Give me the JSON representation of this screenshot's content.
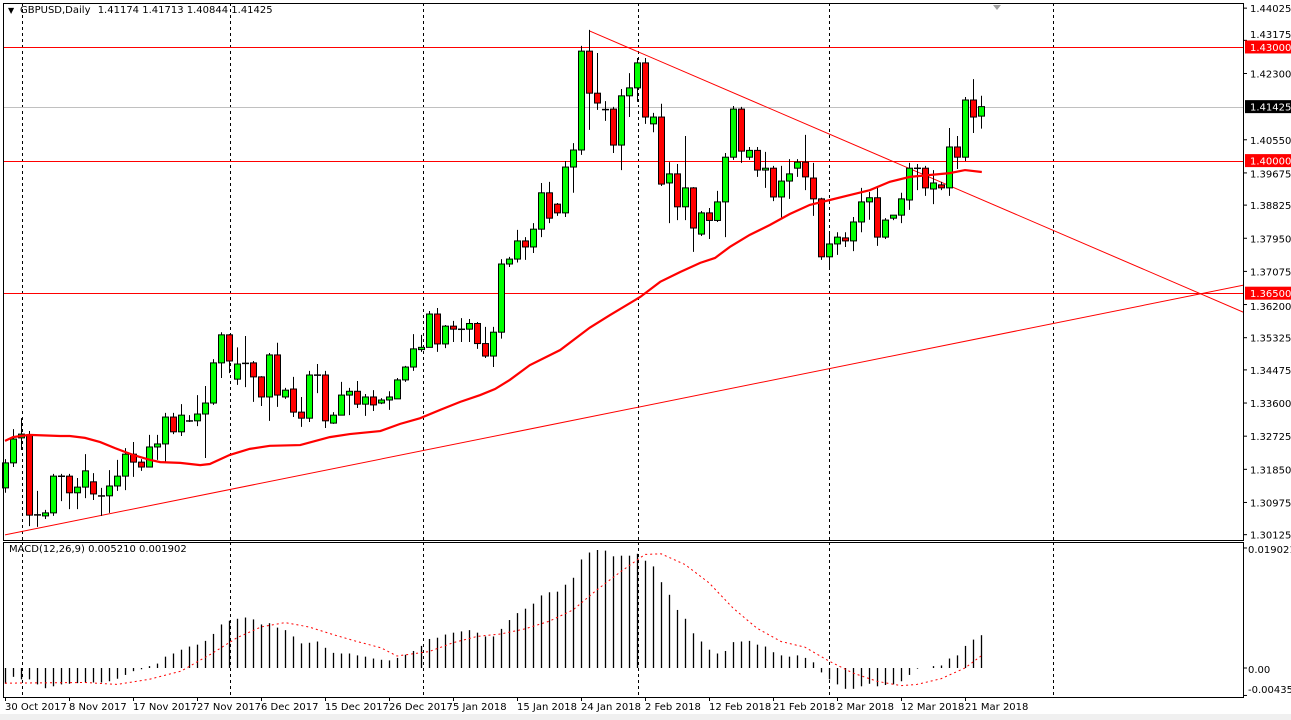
{
  "header": {
    "symbol": "GBPUSD,Daily",
    "ohlc": "1.41174 1.41713 1.40844 1.41425"
  },
  "macd_header": {
    "label": "MACD(12,26,9) 0.005210 0.001902"
  },
  "colors": {
    "bull": "#00ff00",
    "bear": "#ff0000",
    "outline": "#000000",
    "ma": "#ff0000",
    "trend": "#ff0000",
    "level": "#ff0000",
    "current": "#c0c0c0",
    "signal": "#ff0000"
  },
  "chart_data": {
    "type": "candlestick",
    "title": "GBPUSD,Daily",
    "ylim": [
      1.30125,
      1.44025
    ],
    "price_ticks": [
      "1.44025",
      "1.43175",
      "1.42300",
      "1.40550",
      "1.39675",
      "1.38825",
      "1.37950",
      "1.37075",
      "1.36200",
      "1.35325",
      "1.34475",
      "1.33600",
      "1.32725",
      "1.31850",
      "1.30975",
      "1.30125"
    ],
    "levels": [
      {
        "value": "1.43000",
        "kind": "level"
      },
      {
        "value": "1.40000",
        "kind": "level"
      },
      {
        "value": "1.36500",
        "kind": "level"
      },
      {
        "value": "1.41425",
        "kind": "current"
      }
    ],
    "trendlines": [
      {
        "name": "ascending-trendline",
        "from": [
          0,
          1.3012
        ],
        "to": [
          155,
          1.3672
        ]
      },
      {
        "name": "descending-trendline",
        "from": [
          73.1,
          1.4342
        ],
        "to": [
          155,
          1.3598
        ]
      }
    ],
    "time_labels": [
      {
        "i": 0,
        "label": "30 Oct 2017"
      },
      {
        "i": 8,
        "label": "8 Nov 2017"
      },
      {
        "i": 16,
        "label": "17 Nov 2017"
      },
      {
        "i": 24,
        "label": "27 Nov 2017"
      },
      {
        "i": 32,
        "label": "6 Dec 2017"
      },
      {
        "i": 40,
        "label": "15 Dec 2017"
      },
      {
        "i": 48,
        "label": "26 Dec 2017"
      },
      {
        "i": 56,
        "label": "5 Jan 2018"
      },
      {
        "i": 64,
        "label": "15 Jan 2018"
      },
      {
        "i": 72,
        "label": "24 Jan 2018"
      },
      {
        "i": 80,
        "label": "2 Feb 2018"
      },
      {
        "i": 88,
        "label": "12 Feb 2018"
      },
      {
        "i": 96,
        "label": "21 Feb 2018"
      },
      {
        "i": 104,
        "label": "2 Mar 2018"
      },
      {
        "i": 112,
        "label": "12 Mar 2018"
      },
      {
        "i": 120,
        "label": "21 Mar 2018"
      }
    ],
    "candles": [
      [
        1.3136,
        1.3212,
        1.3123,
        1.3202
      ],
      [
        1.3202,
        1.3291,
        1.3191,
        1.3265
      ],
      [
        1.3268,
        1.332,
        1.3236,
        1.3278
      ],
      [
        1.3276,
        1.3286,
        1.3035,
        1.3064
      ],
      [
        1.3064,
        1.3128,
        1.3033,
        1.3066
      ],
      [
        1.3062,
        1.3078,
        1.3054,
        1.307
      ],
      [
        1.307,
        1.3173,
        1.3062,
        1.3167
      ],
      [
        1.3167,
        1.3173,
        1.3101,
        1.3168
      ],
      [
        1.3167,
        1.3173,
        1.308,
        1.3123
      ],
      [
        1.3123,
        1.3162,
        1.308,
        1.3138
      ],
      [
        1.3138,
        1.3225,
        1.3109,
        1.3181
      ],
      [
        1.3152,
        1.3175,
        1.3104,
        1.312
      ],
      [
        1.3115,
        1.3136,
        1.3062,
        1.3116
      ],
      [
        1.3115,
        1.3183,
        1.307,
        1.3141
      ],
      [
        1.3141,
        1.321,
        1.3128,
        1.3167
      ],
      [
        1.3167,
        1.3241,
        1.313,
        1.3225
      ],
      [
        1.3225,
        1.3257,
        1.3165,
        1.3204
      ],
      [
        1.3204,
        1.3212,
        1.3181,
        1.3191
      ],
      [
        1.3191,
        1.3276,
        1.319,
        1.3244
      ],
      [
        1.3244,
        1.3276,
        1.321,
        1.3252
      ],
      [
        1.3252,
        1.3334,
        1.3204,
        1.3323
      ],
      [
        1.3323,
        1.3334,
        1.3278,
        1.3284
      ],
      [
        1.3284,
        1.3357,
        1.3273,
        1.3328
      ],
      [
        1.3313,
        1.3328,
        1.331,
        1.3314
      ],
      [
        1.3313,
        1.3381,
        1.3299,
        1.3331
      ],
      [
        1.3331,
        1.3405,
        1.3215,
        1.336
      ],
      [
        1.336,
        1.3476,
        1.3355,
        1.3466
      ],
      [
        1.3466,
        1.3547,
        1.3426,
        1.354
      ],
      [
        1.354,
        1.3542,
        1.3439,
        1.3471
      ],
      [
        1.3423,
        1.3507,
        1.3408,
        1.3463
      ],
      [
        1.3466,
        1.3537,
        1.3402,
        1.3465
      ],
      [
        1.3466,
        1.3471,
        1.3363,
        1.3429
      ],
      [
        1.3429,
        1.3431,
        1.3352,
        1.3376
      ],
      [
        1.3376,
        1.3492,
        1.3313,
        1.3487
      ],
      [
        1.3487,
        1.3519,
        1.335,
        1.3381
      ],
      [
        1.3376,
        1.34,
        1.3371,
        1.3394
      ],
      [
        1.3397,
        1.3429,
        1.3323,
        1.3336
      ],
      [
        1.3336,
        1.3376,
        1.3297,
        1.332
      ],
      [
        1.332,
        1.3445,
        1.331,
        1.3434
      ],
      [
        1.3434,
        1.3463,
        1.3386,
        1.3435
      ],
      [
        1.3434,
        1.3445,
        1.3294,
        1.3313
      ],
      [
        1.3307,
        1.3336,
        1.3305,
        1.3328
      ],
      [
        1.3328,
        1.3416,
        1.3328,
        1.3381
      ],
      [
        1.3381,
        1.34,
        1.3328,
        1.3391
      ],
      [
        1.3391,
        1.3418,
        1.3347,
        1.3357
      ],
      [
        1.3357,
        1.3384,
        1.3326,
        1.3376
      ],
      [
        1.3376,
        1.3394,
        1.3339,
        1.3355
      ],
      [
        1.336,
        1.3373,
        1.3357,
        1.3368
      ],
      [
        1.3368,
        1.3391,
        1.3342,
        1.3376
      ],
      [
        1.3371,
        1.3426,
        1.3371,
        1.3421
      ],
      [
        1.3421,
        1.3458,
        1.3416,
        1.3455
      ],
      [
        1.3455,
        1.3542,
        1.3445,
        1.3503
      ],
      [
        1.3501,
        1.354,
        1.3495,
        1.3507
      ],
      [
        1.3507,
        1.3603,
        1.3507,
        1.3595
      ],
      [
        1.3595,
        1.3611,
        1.3495,
        1.3516
      ],
      [
        1.3516,
        1.3566,
        1.3505,
        1.3563
      ],
      [
        1.3563,
        1.3577,
        1.3521,
        1.3555
      ],
      [
        1.3555,
        1.3584,
        1.3521,
        1.3556
      ],
      [
        1.3555,
        1.3582,
        1.3521,
        1.357
      ],
      [
        1.357,
        1.3574,
        1.3503,
        1.3517
      ],
      [
        1.3517,
        1.3561,
        1.3479,
        1.3484
      ],
      [
        1.3484,
        1.3561,
        1.3455,
        1.3547
      ],
      [
        1.3547,
        1.374,
        1.353,
        1.3727
      ],
      [
        1.3727,
        1.3746,
        1.3719,
        1.374
      ],
      [
        1.374,
        1.3817,
        1.3731,
        1.3788
      ],
      [
        1.3788,
        1.3798,
        1.3738,
        1.3772
      ],
      [
        1.3772,
        1.3835,
        1.3756,
        1.3819
      ],
      [
        1.3819,
        1.3941,
        1.3798,
        1.3915
      ],
      [
        1.3915,
        1.3944,
        1.3835,
        1.3848
      ],
      [
        1.3885,
        1.3888,
        1.3854,
        1.3862
      ],
      [
        1.3862,
        1.3999,
        1.3851,
        1.3983
      ],
      [
        1.3983,
        1.4046,
        1.3915,
        1.4028
      ],
      [
        1.4028,
        1.4303,
        1.4015,
        1.4289
      ],
      [
        1.4289,
        1.4345,
        1.4081,
        1.4178
      ],
      [
        1.4178,
        1.4284,
        1.4134,
        1.4152
      ],
      [
        1.4136,
        1.4157,
        1.4105,
        1.4135
      ],
      [
        1.4136,
        1.4142,
        1.402,
        1.4041
      ],
      [
        1.4041,
        1.4189,
        1.3975,
        1.4171
      ],
      [
        1.4171,
        1.4231,
        1.4115,
        1.4192
      ],
      [
        1.4192,
        1.4271,
        1.4155,
        1.4258
      ],
      [
        1.4258,
        1.4271,
        1.4097,
        1.4115
      ],
      [
        1.4097,
        1.4126,
        1.4075,
        1.4115
      ],
      [
        1.4115,
        1.415,
        1.3933,
        1.3938
      ],
      [
        1.3941,
        1.3996,
        1.3835,
        1.3965
      ],
      [
        1.3965,
        1.3991,
        1.3843,
        1.3878
      ],
      [
        1.3878,
        1.4065,
        1.3843,
        1.3928
      ],
      [
        1.3928,
        1.393,
        1.3759,
        1.3822
      ],
      [
        1.3806,
        1.3867,
        1.3801,
        1.3862
      ],
      [
        1.3862,
        1.3875,
        1.3793,
        1.3842
      ],
      [
        1.3842,
        1.392,
        1.3838,
        1.3891
      ],
      [
        1.3891,
        1.402,
        1.3798,
        1.4009
      ],
      [
        1.4009,
        1.4144,
        1.4002,
        1.4136
      ],
      [
        1.4136,
        1.4142,
        1.3994,
        1.4025
      ],
      [
        1.4009,
        1.4036,
        1.4002,
        1.4027
      ],
      [
        1.4027,
        1.4036,
        1.3957,
        1.3975
      ],
      [
        1.3975,
        1.4023,
        1.3928,
        1.398
      ],
      [
        1.398,
        1.3986,
        1.3893,
        1.3904
      ],
      [
        1.3904,
        1.3986,
        1.3848,
        1.3946
      ],
      [
        1.3946,
        1.4004,
        1.3899,
        1.3965
      ],
      [
        1.398,
        1.4004,
        1.3957,
        1.3996
      ],
      [
        1.3996,
        1.4068,
        1.3922,
        1.3957
      ],
      [
        1.3954,
        1.3994,
        1.3854,
        1.3899
      ],
      [
        1.3899,
        1.3902,
        1.3738,
        1.3746
      ],
      [
        1.3746,
        1.3809,
        1.3712,
        1.378
      ],
      [
        1.378,
        1.3811,
        1.3751,
        1.3798
      ],
      [
        1.3796,
        1.3811,
        1.3772,
        1.3788
      ],
      [
        1.3788,
        1.3851,
        1.3761,
        1.3838
      ],
      [
        1.3838,
        1.3928,
        1.3811,
        1.3891
      ],
      [
        1.3891,
        1.3917,
        1.3844,
        1.3902
      ],
      [
        1.3902,
        1.3928,
        1.3775,
        1.3798
      ],
      [
        1.3798,
        1.3848,
        1.3793,
        1.3843
      ],
      [
        1.3848,
        1.3856,
        1.3843,
        1.3856
      ],
      [
        1.3856,
        1.3915,
        1.3835,
        1.3899
      ],
      [
        1.3896,
        1.3994,
        1.387,
        1.398
      ],
      [
        1.398,
        1.3991,
        1.3922,
        1.3981
      ],
      [
        1.398,
        1.3986,
        1.3907,
        1.3928
      ],
      [
        1.3925,
        1.3975,
        1.3885,
        1.3941
      ],
      [
        1.3936,
        1.3944,
        1.3922,
        1.3928
      ],
      [
        1.3928,
        1.4086,
        1.3907,
        1.4036
      ],
      [
        1.4036,
        1.4065,
        1.3978,
        1.4009
      ],
      [
        1.4009,
        1.4168,
        1.3999,
        1.416
      ],
      [
        1.416,
        1.4215,
        1.4073,
        1.4115
      ],
      [
        1.41174,
        1.41713,
        1.40844,
        1.41425
      ]
    ],
    "moving_average": [
      [
        0,
        1.326
      ],
      [
        1,
        1.327
      ],
      [
        3,
        1.3276
      ],
      [
        6.9,
        1.3273
      ],
      [
        8.1,
        1.3273
      ],
      [
        10,
        1.3268
      ],
      [
        11.9,
        1.3257
      ],
      [
        13.75,
        1.3241
      ],
      [
        16,
        1.3223
      ],
      [
        18.1,
        1.321
      ],
      [
        19.4,
        1.3204
      ],
      [
        21.9,
        1.3202
      ],
      [
        24.4,
        1.3196
      ],
      [
        25.6,
        1.3199
      ],
      [
        28.1,
        1.3223
      ],
      [
        30.6,
        1.3239
      ],
      [
        33.1,
        1.3247
      ],
      [
        36.9,
        1.3249
      ],
      [
        40.6,
        1.327
      ],
      [
        43.1,
        1.3278
      ],
      [
        46.9,
        1.3286
      ],
      [
        49.4,
        1.3305
      ],
      [
        51.9,
        1.332
      ],
      [
        54.4,
        1.3342
      ],
      [
        56.9,
        1.3363
      ],
      [
        59.4,
        1.3381
      ],
      [
        61.25,
        1.3397
      ],
      [
        63.1,
        1.3421
      ],
      [
        65.6,
        1.346
      ],
      [
        69.4,
        1.35
      ],
      [
        73.1,
        1.3559
      ],
      [
        75.6,
        1.3592
      ],
      [
        79.4,
        1.364
      ],
      [
        81.9,
        1.368
      ],
      [
        84.4,
        1.3706
      ],
      [
        86.9,
        1.373
      ],
      [
        88.75,
        1.3743
      ],
      [
        90.6,
        1.3772
      ],
      [
        93.1,
        1.3804
      ],
      [
        95.6,
        1.383
      ],
      [
        98.1,
        1.3859
      ],
      [
        100.6,
        1.3883
      ],
      [
        103.1,
        1.3896
      ],
      [
        105.6,
        1.3909
      ],
      [
        108.1,
        1.3922
      ],
      [
        110.6,
        1.3944
      ],
      [
        113.1,
        1.3957
      ],
      [
        115.6,
        1.3962
      ],
      [
        118.1,
        1.3967
      ],
      [
        120,
        1.3975
      ],
      [
        122.1,
        1.397
      ]
    ],
    "macd": {
      "params": "12,26,9",
      "ticks": [
        "0.019021",
        "0.00",
        "-0.004351"
      ],
      "histogram": [
        -0.0025,
        -0.0014,
        -0.0018,
        -0.0018,
        -0.0026,
        -0.0032,
        -0.0029,
        -0.0026,
        -0.0025,
        -0.0024,
        -0.0023,
        -0.0023,
        -0.0023,
        -0.0021,
        -0.0017,
        -0.0011,
        -0.0005,
        -0.0002,
        0.0003,
        0.0007,
        0.0018,
        0.0023,
        0.0029,
        0.0034,
        0.0037,
        0.0043,
        0.0054,
        0.0069,
        0.0075,
        0.0078,
        0.008,
        0.0077,
        0.0069,
        0.0071,
        0.0064,
        0.006,
        0.005,
        0.0039,
        0.004,
        0.0042,
        0.0032,
        0.0024,
        0.0023,
        0.0023,
        0.002,
        0.0018,
        0.0015,
        0.0013,
        0.0012,
        0.0016,
        0.0021,
        0.0027,
        0.0035,
        0.0046,
        0.0048,
        0.0053,
        0.0056,
        0.0058,
        0.006,
        0.0056,
        0.005,
        0.005,
        0.0062,
        0.0076,
        0.0087,
        0.0094,
        0.0102,
        0.0115,
        0.012,
        0.0121,
        0.0132,
        0.0143,
        0.0172,
        0.0183,
        0.0187,
        0.0186,
        0.0177,
        0.0178,
        0.0178,
        0.0181,
        0.017,
        0.0161,
        0.0136,
        0.0116,
        0.0092,
        0.0078,
        0.0055,
        0.0042,
        0.0029,
        0.0023,
        0.0027,
        0.0041,
        0.0042,
        0.0043,
        0.0037,
        0.0034,
        0.0025,
        0.002,
        0.0018,
        0.002,
        0.0016,
        0.0009,
        -0.0007,
        -0.0018,
        -0.0026,
        -0.0033,
        -0.0033,
        -0.0029,
        -0.0025,
        -0.0029,
        -0.0027,
        -0.0026,
        -0.0021,
        -0.0011,
        -0.0001,
        0.0,
        0.0003,
        0.0004,
        0.0015,
        0.002,
        0.0035,
        0.0045,
        0.0052
      ],
      "signal": [
        [
          0,
          -0.0024
        ],
        [
          10,
          -0.0023
        ],
        [
          14,
          -0.0026
        ],
        [
          18,
          -0.0018
        ],
        [
          22,
          -0.0005
        ],
        [
          26,
          0.0024
        ],
        [
          29,
          0.0048
        ],
        [
          32,
          0.0065
        ],
        [
          35,
          0.0072
        ],
        [
          38,
          0.0065
        ],
        [
          41,
          0.0053
        ],
        [
          44,
          0.0042
        ],
        [
          47,
          0.0032
        ],
        [
          49,
          0.0019
        ],
        [
          53,
          0.0026
        ],
        [
          56,
          0.004
        ],
        [
          59,
          0.005
        ],
        [
          62,
          0.0054
        ],
        [
          65,
          0.0062
        ],
        [
          68,
          0.0074
        ],
        [
          71,
          0.0092
        ],
        [
          74,
          0.0124
        ],
        [
          77,
          0.0153
        ],
        [
          80,
          0.018
        ],
        [
          82,
          0.0181
        ],
        [
          85,
          0.0164
        ],
        [
          88,
          0.0135
        ],
        [
          91,
          0.0095
        ],
        [
          94,
          0.0063
        ],
        [
          97,
          0.0042
        ],
        [
          100,
          0.0033
        ],
        [
          103,
          0.0011
        ],
        [
          106,
          -0.0008
        ],
        [
          109,
          -0.0021
        ],
        [
          112,
          -0.0028
        ],
        [
          114,
          -0.0026
        ],
        [
          117,
          -0.0017
        ],
        [
          120,
          0.0
        ],
        [
          122,
          0.0019
        ]
      ]
    }
  }
}
